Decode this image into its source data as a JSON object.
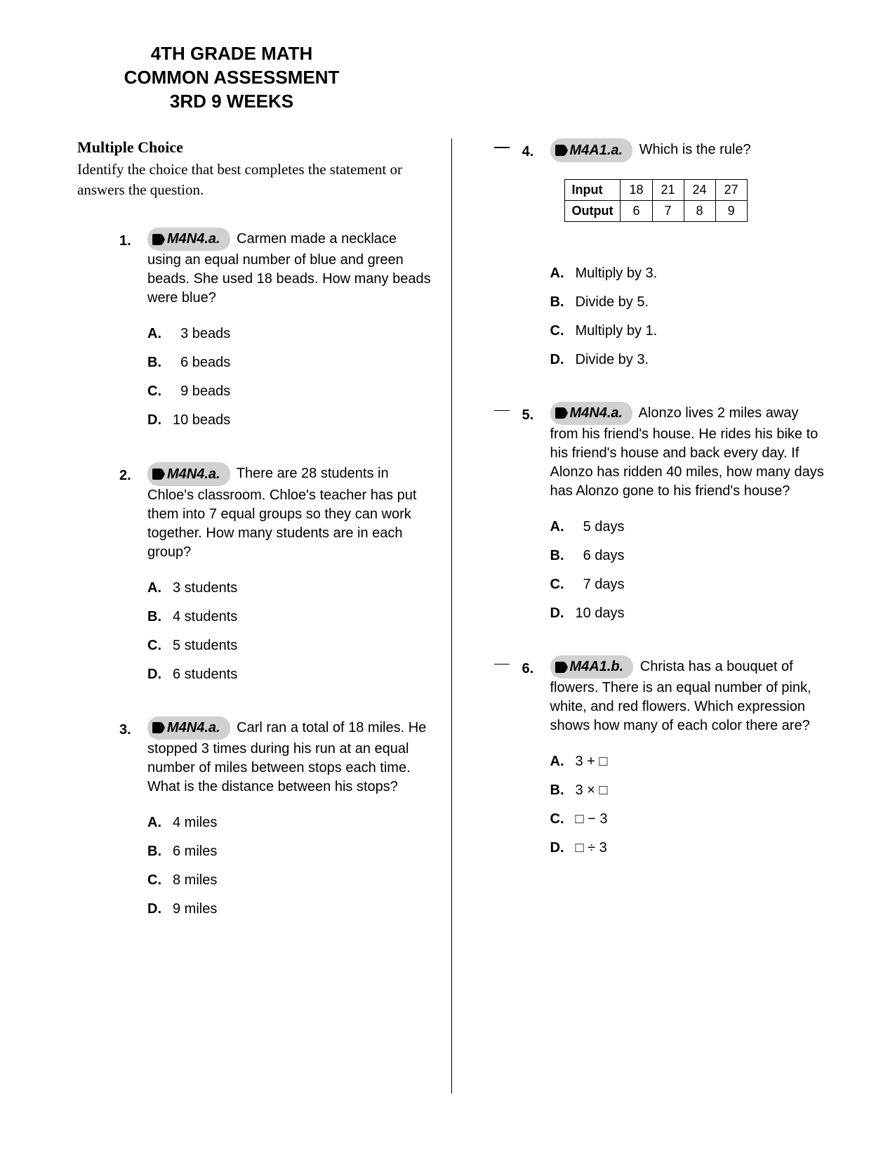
{
  "title_lines": [
    "4TH GRADE MATH",
    "COMMON ASSESSMENT",
    "3RD 9 WEEKS"
  ],
  "section": {
    "heading": "Multiple Choice",
    "subheading": "Identify the choice that best completes the statement or answers the question."
  },
  "badge_colors": {
    "bg": "#d0d0d0",
    "icon": "#000000"
  },
  "questions": [
    {
      "num": "1.",
      "standard": "M4N4.a.",
      "text": "Carmen made a necklace using an equal number of blue and green beads. She used 18 beads. How many beads were blue?",
      "choices": [
        {
          "letter": "A.",
          "text": "3 beads",
          "pad": true
        },
        {
          "letter": "B.",
          "text": "6 beads",
          "pad": true
        },
        {
          "letter": "C.",
          "text": "9 beads",
          "pad": true
        },
        {
          "letter": "D.",
          "text": "10 beads"
        }
      ]
    },
    {
      "num": "2.",
      "standard": "M4N4.a.",
      "text": "There are 28 students in Chloe's classroom. Chloe's teacher has put them into 7 equal groups so they can work together. How many students are in each group?",
      "choices": [
        {
          "letter": "A.",
          "text": "3 students"
        },
        {
          "letter": "B.",
          "text": "4 students"
        },
        {
          "letter": "C.",
          "text": "5 students"
        },
        {
          "letter": "D.",
          "text": "6 students"
        }
      ]
    },
    {
      "num": "3.",
      "standard": "M4N4.a.",
      "text": "Carl ran a total of 18 miles. He stopped 3 times during his run at an equal number of miles between stops each time. What is the distance between his stops?",
      "choices": [
        {
          "letter": "A.",
          "text": "4 miles"
        },
        {
          "letter": "B.",
          "text": "6 miles"
        },
        {
          "letter": "C.",
          "text": "8 miles"
        },
        {
          "letter": "D.",
          "text": "9 miles"
        }
      ]
    },
    {
      "num": "4.",
      "standard": "M4A1.a.",
      "text": "Which is the rule?",
      "table": {
        "rows": [
          [
            "Input",
            "18",
            "21",
            "24",
            "27"
          ],
          [
            "Output",
            "6",
            "7",
            "8",
            "9"
          ]
        ]
      },
      "choices": [
        {
          "letter": "A.",
          "text": "Multiply by 3."
        },
        {
          "letter": "B.",
          "text": "Divide by 5."
        },
        {
          "letter": "C.",
          "text": "Multiply by 1."
        },
        {
          "letter": "D.",
          "text": "Divide by 3."
        }
      ]
    },
    {
      "num": "5.",
      "standard": "M4N4.a.",
      "text": "Alonzo lives 2 miles away from his friend's house. He rides his bike to his friend's house and back every day. If Alonzo has ridden 40 miles, how many days has Alonzo gone to his friend's house?",
      "choices": [
        {
          "letter": "A.",
          "text": "5 days",
          "pad": true
        },
        {
          "letter": "B.",
          "text": "6 days",
          "pad": true
        },
        {
          "letter": "C.",
          "text": "7 days",
          "pad": true
        },
        {
          "letter": "D.",
          "text": "10 days"
        }
      ]
    },
    {
      "num": "6.",
      "standard": "M4A1.b.",
      "text": "Christa has a bouquet of flowers. There is an equal number of pink, white, and red flowers. Which expression shows how many of each color there are?",
      "choices": [
        {
          "letter": "A.",
          "text": "3 + □"
        },
        {
          "letter": "B.",
          "text": "3 × □"
        },
        {
          "letter": "C.",
          "text": "□ − 3"
        },
        {
          "letter": "D.",
          "text": "□ ÷ 3"
        }
      ]
    }
  ]
}
